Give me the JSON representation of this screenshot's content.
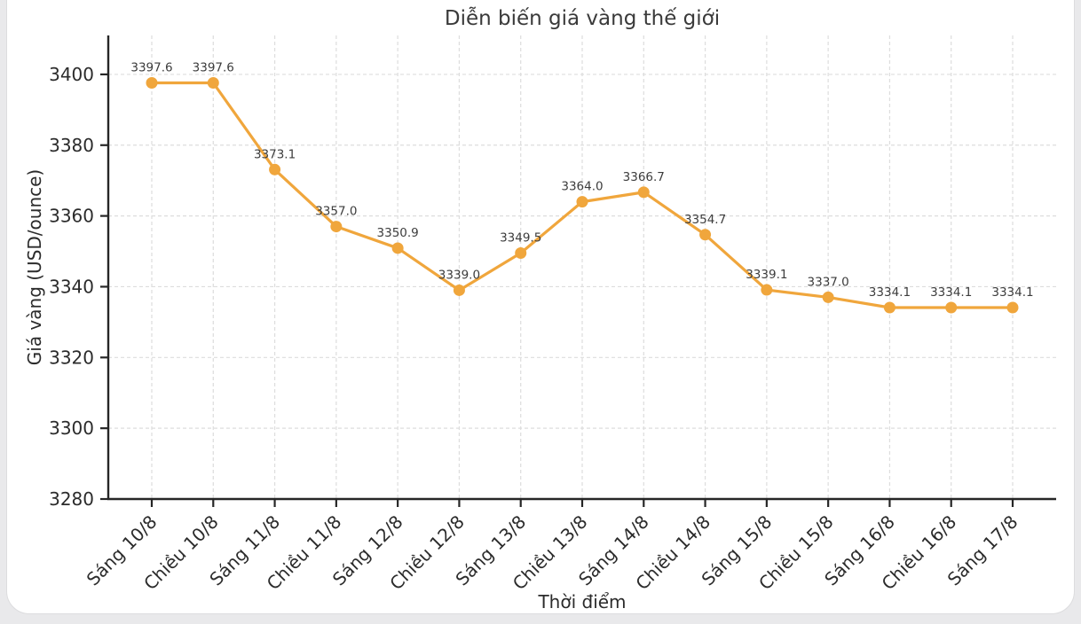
{
  "page": {
    "background_color": "#e9e9eb",
    "card_background": "#ffffff",
    "card_border_color": "#dcdcde"
  },
  "chart_data": {
    "type": "line",
    "title": "Diễn biến giá vàng thế giới",
    "xlabel": "Thời điểm",
    "ylabel": "Giá vàng (USD/ounce)",
    "categories": [
      "Sáng 10/8",
      "Chiều 10/8",
      "Sáng 11/8",
      "Chiều 11/8",
      "Sáng 12/8",
      "Chiều 12/8",
      "Sáng 13/8",
      "Chiều 13/8",
      "Sáng 14/8",
      "Chiều 14/8",
      "Sáng 15/8",
      "Chiều 15/8",
      "Sáng 16/8",
      "Chiều 16/8",
      "Sáng 17/8"
    ],
    "values": [
      3397.6,
      3397.6,
      3373.1,
      3357.0,
      3350.9,
      3339.0,
      3349.5,
      3364.0,
      3366.7,
      3354.7,
      3339.1,
      3337.0,
      3334.1,
      3334.1,
      3334.1
    ],
    "data_labels": [
      "3397.6",
      "3397.6",
      "3373.1",
      "3357.0",
      "3350.9",
      "3339.0",
      "3349.5",
      "3364.0",
      "3366.7",
      "3354.7",
      "3339.1",
      "3337.0",
      "3334.1",
      "3334.1",
      "3334.1"
    ],
    "ylim": [
      3280,
      3411
    ],
    "yticks": [
      3280,
      3300,
      3320,
      3340,
      3360,
      3380,
      3400
    ],
    "grid": true,
    "grid_style": "dashed",
    "legend": "none",
    "marker": "circle",
    "line_color": "#f0a63c",
    "marker_color": "#f0a63c",
    "grid_color": "#dddddd",
    "spine_color": "#262626",
    "tick_text_color": "#2b2b2b",
    "title_color": "#3a3a3a",
    "data_label_color": "#3c3c3c",
    "axis_label_color": "#2b2b2b"
  }
}
